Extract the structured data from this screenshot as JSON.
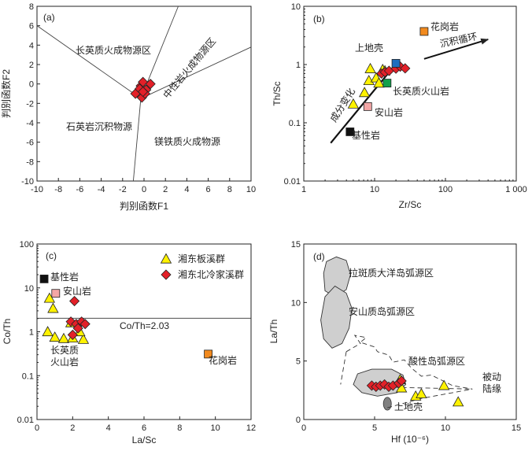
{
  "colors": {
    "diamond": "#e32028",
    "triangle": "#fff200",
    "basalt": "#111111",
    "andesite": "#f4a6a6",
    "granite": "#f28a1e",
    "upper_crust_b": "#1f6fbf",
    "felsic_volcanic_b": "#12a04a",
    "field_gray": "#cfcfcf",
    "upper_crust_d": "#808080"
  },
  "chart_data": [
    {
      "id": "a",
      "type": "scatter",
      "panel_label": "(a)",
      "xlabel": "判别函数F1",
      "ylabel": "判别函数F2",
      "xlim": [
        -10,
        10
      ],
      "ylim": [
        -10,
        8
      ],
      "xticks": [
        "-10",
        "-8",
        "-6",
        "-4",
        "-2",
        "0",
        "2",
        "4",
        "6",
        "8",
        "10"
      ],
      "yticks": [
        "-10",
        "-8",
        "-6",
        "-4",
        "-2",
        "0",
        "2",
        "4",
        "6",
        "8"
      ],
      "regions": [
        "长英质火成物源区",
        "中性岩火成物源区",
        "石英岩沉积物源",
        "镁铁质火成物源"
      ],
      "boundaries": [
        [
          [
            -10.3,
            6.0
          ],
          [
            -0.3,
            -1.5
          ]
        ],
        [
          [
            -0.3,
            -1.5
          ],
          [
            3.2,
            8.2
          ]
        ],
        [
          [
            -0.3,
            -1.5
          ],
          [
            10.6,
            3.8
          ]
        ],
        [
          [
            -0.3,
            -1.5
          ],
          [
            -1.0,
            -10.0
          ]
        ]
      ],
      "series": [
        {
          "marker": "diamond",
          "points": [
            [
              -0.8,
              -1.0
            ],
            [
              -0.3,
              -0.2
            ],
            [
              -0.1,
              0.2
            ],
            [
              0.2,
              -0.6
            ],
            [
              0.6,
              0.0
            ],
            [
              -0.2,
              -1.4
            ],
            [
              0.1,
              -1.0
            ],
            [
              -0.4,
              -0.5
            ],
            [
              -0.1,
              -0.8
            ]
          ]
        }
      ]
    },
    {
      "id": "b",
      "type": "scatter",
      "panel_label": "(b)",
      "xlabel": "Zr/Sc",
      "ylabel": "Th/Sc",
      "xscale": "log",
      "yscale": "log",
      "xlim": [
        1,
        1000
      ],
      "ylim": [
        0.01,
        10
      ],
      "xticks": [
        {
          "v": 1,
          "t": "1"
        },
        {
          "v": 10,
          "t": "10"
        },
        {
          "v": 100,
          "t": "100"
        },
        {
          "v": 1000,
          "t": "1 000"
        }
      ],
      "yticks": [
        {
          "v": 0.01,
          "t": "0.01"
        },
        {
          "v": 0.1,
          "t": "0.1"
        },
        {
          "v": 1,
          "t": "1"
        },
        {
          "v": 10,
          "t": "10"
        }
      ],
      "annotations": [
        "成分变化",
        "沉积循环"
      ],
      "trend_line": [
        [
          2.4,
          0.045
        ],
        [
          19,
          0.95
        ]
      ],
      "recycle_arrow": [
        [
          50,
          1.25
        ],
        [
          400,
          2.7
        ]
      ],
      "references": [
        {
          "name": "花岗岩",
          "x": 50,
          "y": 3.7,
          "color_key": "granite"
        },
        {
          "name": "上地壳",
          "x": 20,
          "y": 1.05,
          "color_key": "upper_crust_b"
        },
        {
          "name": "长英质火山岩",
          "x": 15,
          "y": 0.48,
          "color_key": "felsic_volcanic_b"
        },
        {
          "name": "安山岩",
          "x": 8,
          "y": 0.19,
          "color_key": "andesite"
        },
        {
          "name": "基性岩",
          "x": 4.5,
          "y": 0.07,
          "color_key": "basalt"
        }
      ],
      "series": [
        {
          "marker": "triangle",
          "points": [
            [
              5.0,
              0.21
            ],
            [
              7.2,
              0.33
            ],
            [
              8.3,
              0.53
            ],
            [
              8.7,
              0.85
            ],
            [
              10.5,
              0.59
            ],
            [
              11.5,
              0.48
            ],
            [
              13.0,
              0.82
            ],
            [
              14.0,
              0.78
            ]
          ]
        },
        {
          "marker": "diamond",
          "points": [
            [
              12.5,
              0.7
            ],
            [
              14.0,
              0.74
            ],
            [
              16.0,
              0.78
            ],
            [
              20.0,
              0.85
            ],
            [
              23.0,
              0.92
            ],
            [
              27.0,
              0.86
            ]
          ]
        }
      ]
    },
    {
      "id": "c",
      "type": "scatter",
      "panel_label": "(c)",
      "xlabel": "La/Sc",
      "ylabel": "Co/Th",
      "yscale": "log",
      "xlim": [
        0,
        12
      ],
      "ylim": [
        0.01,
        100
      ],
      "xticks": [
        "0",
        "2",
        "4",
        "6",
        "8",
        "10",
        "12"
      ],
      "yticks": [
        {
          "v": 0.01,
          "t": "0.01"
        },
        {
          "v": 0.1,
          "t": "0.1"
        },
        {
          "v": 1,
          "t": "1"
        },
        {
          "v": 10,
          "t": "10"
        },
        {
          "v": 100,
          "t": "100"
        }
      ],
      "hline": {
        "y": 2.03,
        "label": "Co/Th=2.03"
      },
      "legend": [
        {
          "marker": "triangle",
          "label": "湘东板溪群"
        },
        {
          "marker": "diamond",
          "label": "湘东北冷家溪群"
        }
      ],
      "references": [
        {
          "name": "基性岩",
          "x": 0.4,
          "y": 16,
          "color_key": "basalt"
        },
        {
          "name": "安山岩",
          "x": 1.05,
          "y": 7.5,
          "color_key": "andesite"
        },
        {
          "name": "长英质火山岩",
          "x": 2.0,
          "y": 0.8,
          "color_key": "triangle"
        },
        {
          "name": "花岗岩",
          "x": 9.6,
          "y": 0.31,
          "color_key": "granite"
        }
      ],
      "reference_labels": [
        "基性岩",
        "安山岩",
        "长英质",
        "火山岩",
        "花岗岩"
      ],
      "series": [
        {
          "name": "湘东板溪群",
          "marker": "triangle",
          "points": [
            [
              0.7,
              5.8
            ],
            [
              0.9,
              3.4
            ],
            [
              0.6,
              1.0
            ],
            [
              1.0,
              0.75
            ],
            [
              1.5,
              0.7
            ],
            [
              2.0,
              0.72
            ],
            [
              2.6,
              0.67
            ],
            [
              2.4,
              1.0
            ],
            [
              1.9,
              1.6
            ]
          ]
        },
        {
          "name": "湘东北冷家溪群",
          "marker": "diamond",
          "points": [
            [
              2.1,
              5.0
            ],
            [
              1.9,
              1.7
            ],
            [
              2.2,
              1.5
            ],
            [
              2.5,
              1.7
            ],
            [
              2.7,
              1.5
            ],
            [
              2.3,
              1.2
            ],
            [
              2.0,
              0.85
            ]
          ]
        }
      ]
    },
    {
      "id": "d",
      "type": "scatter",
      "panel_label": "(d)",
      "xlabel": "Hf (10⁻⁶)",
      "ylabel": "La/Th",
      "xlim": [
        0,
        15
      ],
      "ylim": [
        0,
        15
      ],
      "xticks": [
        "0",
        "5",
        "10",
        "15"
      ],
      "yticks": [
        "0",
        "5",
        "10",
        "15"
      ],
      "regions": [
        "拉斑质大洋岛弧源区",
        "安山质岛弧源区",
        "酸性岛弧源区",
        "被动",
        "陆缘",
        "上地壳"
      ],
      "fields": [
        [
          [
            1.4,
            12.5
          ],
          [
            1.6,
            13.5
          ],
          [
            2.3,
            13.9
          ],
          [
            3.0,
            13.6
          ],
          [
            3.3,
            12.4
          ],
          [
            3.0,
            11.1
          ],
          [
            2.2,
            10.5
          ],
          [
            1.5,
            11.0
          ]
        ],
        [
          [
            1.2,
            8.5
          ],
          [
            1.5,
            10.5
          ],
          [
            2.2,
            11.4
          ],
          [
            3.0,
            10.8
          ],
          [
            3.4,
            9.5
          ],
          [
            3.2,
            7.8
          ],
          [
            2.7,
            6.5
          ],
          [
            2.0,
            6.1
          ],
          [
            1.4,
            6.9
          ]
        ],
        [
          [
            3.5,
            3.0
          ],
          [
            3.8,
            3.9
          ],
          [
            4.8,
            4.3
          ],
          [
            6.2,
            4.3
          ],
          [
            7.0,
            3.8
          ],
          [
            7.2,
            3.0
          ],
          [
            6.6,
            2.3
          ],
          [
            5.2,
            2.0
          ],
          [
            4.1,
            2.3
          ]
        ]
      ],
      "ellipse": {
        "cx": 5.9,
        "cy": 1.35,
        "rx": 0.28,
        "ry": 0.55
      },
      "dashed_lines": [
        [
          [
            3.0,
            5.8
          ],
          [
            2.6,
            3.0
          ]
        ],
        [
          [
            3.0,
            5.8
          ],
          [
            4.0,
            6.5
          ],
          [
            3.6,
            7.2
          ],
          [
            4.4,
            7.0
          ],
          [
            4.0,
            6.6
          ],
          [
            5.0,
            6.2
          ],
          [
            5.2,
            5.8
          ],
          [
            6.0,
            5.5
          ],
          [
            6.3,
            4.9
          ],
          [
            7.1,
            5.1
          ],
          [
            7.6,
            4.4
          ],
          [
            8.3,
            3.7
          ],
          [
            9.0,
            3.8
          ],
          [
            10.5,
            2.9
          ],
          [
            11.9,
            2.6
          ]
        ],
        [
          [
            4.7,
            2.8
          ],
          [
            11.9,
            2.6
          ]
        ],
        [
          [
            5.9,
            1.0
          ],
          [
            8.3,
            1.8
          ],
          [
            11.9,
            2.6
          ]
        ]
      ],
      "series": [
        {
          "marker": "triangle",
          "points": [
            [
              6.8,
              3.4
            ],
            [
              6.9,
              2.7
            ],
            [
              7.9,
              2.0
            ],
            [
              8.3,
              2.2
            ],
            [
              9.9,
              2.9
            ],
            [
              10.9,
              1.5
            ]
          ]
        },
        {
          "marker": "diamond",
          "points": [
            [
              4.8,
              2.9
            ],
            [
              5.1,
              2.8
            ],
            [
              5.4,
              2.9
            ],
            [
              5.7,
              3.0
            ],
            [
              6.0,
              2.8
            ],
            [
              6.3,
              2.9
            ],
            [
              6.7,
              3.1
            ],
            [
              6.9,
              3.3
            ]
          ]
        }
      ]
    }
  ]
}
